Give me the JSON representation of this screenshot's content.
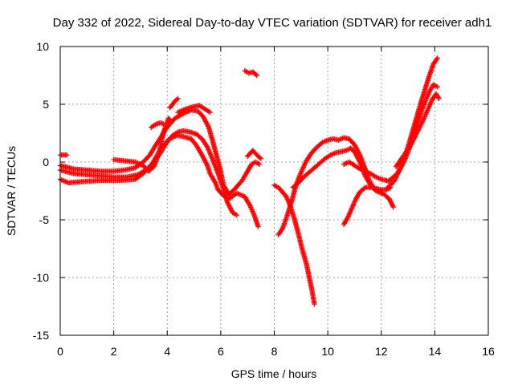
{
  "chart_data": {
    "type": "scatter",
    "title": "Day 332 of 2022, Sidereal Day-to-day VTEC variation (SDTVAR) for receiver adh1",
    "xlabel": "GPS time / hours",
    "ylabel": "SDTVAR / TECUs",
    "xlim": [
      0,
      16
    ],
    "ylim": [
      -15,
      10
    ],
    "xticks": [
      "0",
      "2",
      "4",
      "6",
      "8",
      "10",
      "12",
      "14",
      "16"
    ],
    "yticks": [
      "10",
      "5",
      "0",
      "-5",
      "-10",
      "-15"
    ],
    "xtick_values": [
      0,
      2,
      4,
      6,
      8,
      10,
      12,
      14,
      16
    ],
    "ytick_values": [
      10,
      5,
      0,
      -5,
      -10,
      -15
    ],
    "grid": true,
    "marker": "plus",
    "color": "#ff0000",
    "series": [
      {
        "x": [
          0.0,
          0.25
        ],
        "y": [
          0.6,
          0.6
        ]
      },
      {
        "x": [
          0.0,
          0.3,
          0.8,
          1.5,
          2.2,
          2.8,
          3.1,
          3.4,
          3.6,
          3.8,
          3.95,
          4.1,
          4.25,
          4.4,
          4.6,
          4.9,
          5.1,
          5.3,
          5.5,
          5.6,
          5.8,
          5.9,
          6.1,
          6.3,
          6.6,
          6.9,
          7.1,
          7.25,
          7.4
        ],
        "y": [
          -1.5,
          -1.8,
          -1.7,
          -1.6,
          -1.6,
          -1.5,
          -1.0,
          -0.3,
          0.5,
          1.3,
          1.7,
          2.0,
          2.2,
          2.3,
          2.2,
          2.0,
          1.4,
          0.6,
          -0.3,
          -1.0,
          -1.8,
          -2.4,
          -2.9,
          -3.2,
          -2.7,
          -3.0,
          -3.8,
          -4.6,
          -5.6
        ]
      },
      {
        "x": [
          0.0,
          0.5,
          1.0,
          1.5,
          2.0,
          2.5,
          2.9,
          3.2,
          3.5,
          3.75,
          3.9,
          4.05,
          4.2,
          4.4,
          4.6,
          4.85,
          5.1,
          5.3,
          5.5,
          5.7,
          5.9,
          6.1,
          6.25,
          6.45,
          6.6
        ],
        "y": [
          -0.7,
          -1.0,
          -1.1,
          -1.2,
          -1.3,
          -1.3,
          -1.1,
          -0.7,
          0.0,
          0.8,
          1.4,
          1.9,
          2.3,
          2.6,
          2.7,
          2.6,
          2.4,
          2.0,
          1.3,
          0.2,
          -1.0,
          -2.3,
          -3.5,
          -4.4,
          -4.6
        ]
      },
      {
        "x": [
          0.0,
          0.5,
          1.0,
          1.5,
          2.0,
          2.4,
          2.8,
          3.1,
          3.35,
          3.55,
          3.75,
          3.9,
          4.1,
          4.3,
          4.6,
          4.9,
          5.15,
          5.35,
          5.55,
          5.7,
          5.85,
          6.0,
          6.1,
          6.3,
          6.5,
          6.8,
          7.0,
          7.15,
          7.3,
          7.45
        ],
        "y": [
          -0.3,
          -0.6,
          -0.7,
          -0.8,
          -0.8,
          -0.7,
          -0.5,
          0.0,
          0.6,
          1.4,
          2.1,
          2.7,
          3.3,
          3.8,
          4.2,
          4.5,
          4.4,
          3.9,
          3.0,
          1.8,
          0.5,
          -0.8,
          -2.0,
          -2.8,
          -2.4,
          -1.6,
          -0.8,
          -0.2,
          0.0,
          -0.2
        ]
      },
      {
        "x": [
          2.0,
          2.4,
          2.8,
          3.1,
          3.3,
          3.5,
          3.7,
          3.8,
          3.95,
          4.05,
          4.1
        ],
        "y": [
          0.2,
          0.1,
          0.0,
          -0.3,
          -0.8,
          -0.4,
          0.8,
          2.0,
          3.2,
          3.8,
          3.6
        ]
      },
      {
        "x": [
          3.4,
          3.6,
          3.75,
          3.85
        ],
        "y": [
          3.0,
          3.3,
          3.4,
          3.3
        ]
      },
      {
        "x": [
          4.1,
          4.2,
          4.3,
          4.4
        ],
        "y": [
          4.7,
          5.0,
          5.3,
          5.5
        ]
      },
      {
        "x": [
          4.4,
          4.7,
          5.0,
          5.2,
          5.4,
          5.6
        ],
        "y": [
          4.3,
          4.6,
          4.8,
          4.9,
          4.6,
          4.3
        ]
      },
      {
        "x": [
          6.9,
          7.05,
          7.2,
          7.35
        ],
        "y": [
          7.9,
          7.7,
          7.8,
          7.5
        ]
      },
      {
        "x": [
          7.0,
          7.2,
          7.35,
          7.5
        ],
        "y": [
          0.5,
          1.0,
          0.6,
          0.3
        ]
      },
      {
        "x": [
          8.0,
          8.2,
          8.45,
          8.6,
          8.75,
          8.9,
          9.05,
          9.2,
          9.3,
          9.4,
          9.5
        ],
        "y": [
          -2.0,
          -2.3,
          -3.0,
          -3.8,
          -4.9,
          -6.2,
          -7.6,
          -8.8,
          -9.9,
          -11.0,
          -12.3
        ]
      },
      {
        "x": [
          8.15,
          8.3,
          8.4,
          8.5,
          8.65,
          8.8,
          9.0,
          9.2,
          9.4,
          9.6,
          9.8,
          10.0,
          10.2,
          10.4,
          10.6,
          10.8,
          11.0,
          11.2,
          11.4,
          11.55,
          11.7,
          11.9,
          12.1,
          12.3,
          12.45
        ],
        "y": [
          -6.3,
          -5.8,
          -5.2,
          -4.5,
          -3.4,
          -2.1,
          -0.9,
          0.1,
          0.8,
          1.3,
          1.7,
          1.9,
          2.0,
          1.9,
          2.1,
          2.0,
          1.5,
          0.6,
          -0.6,
          -1.6,
          -2.2,
          -2.5,
          -2.8,
          -3.2,
          -3.9
        ]
      },
      {
        "x": [
          8.7,
          8.9,
          9.1,
          9.3,
          9.5,
          9.7,
          9.9,
          10.1,
          10.3,
          10.5,
          10.7,
          10.85,
          11.0,
          11.2,
          11.4,
          11.6,
          11.8,
          12.0
        ],
        "y": [
          -2.2,
          -1.8,
          -1.3,
          -0.9,
          -0.5,
          -0.1,
          0.3,
          0.6,
          0.8,
          0.9,
          1.0,
          1.2,
          0.9,
          0.0,
          -1.2,
          -2.0,
          -2.5,
          -2.7
        ]
      },
      {
        "x": [
          10.6,
          10.8,
          11.0,
          11.2,
          11.4,
          11.6,
          11.8,
          12.0,
          12.2,
          12.3
        ],
        "y": [
          -0.2,
          0.0,
          -0.3,
          -0.6,
          -0.8,
          -1.0,
          -1.3,
          -1.5,
          -1.6,
          -1.7
        ]
      },
      {
        "x": [
          10.6,
          10.75,
          10.9,
          11.05,
          11.2,
          11.4,
          11.6,
          11.8,
          12.0,
          12.2,
          12.35
        ],
        "y": [
          -5.4,
          -4.8,
          -4.0,
          -3.2,
          -2.6,
          -2.2,
          -2.2,
          -2.3,
          -2.4,
          -2.4,
          -2.2
        ]
      },
      {
        "x": [
          12.2,
          12.35,
          12.5,
          12.6,
          12.75,
          12.9,
          13.05,
          13.2,
          13.35,
          13.5,
          13.65,
          13.8,
          13.95,
          14.1
        ],
        "y": [
          -2.3,
          -2.0,
          -1.6,
          -1.1,
          -0.3,
          0.6,
          1.7,
          2.9,
          4.1,
          5.3,
          6.4,
          7.5,
          8.5,
          9.0
        ]
      },
      {
        "x": [
          12.3,
          12.45,
          12.6,
          12.75,
          12.9,
          13.05,
          13.2,
          13.35,
          13.5,
          13.65,
          13.8,
          13.95,
          14.1
        ],
        "y": [
          -1.6,
          -1.3,
          -1.0,
          -0.4,
          0.3,
          1.2,
          2.3,
          3.3,
          4.4,
          5.3,
          6.1,
          6.7,
          6.5
        ]
      },
      {
        "x": [
          12.55,
          12.7,
          12.85,
          13.0,
          13.15,
          13.3,
          13.45,
          13.6,
          13.75,
          13.9,
          14.05,
          14.15
        ],
        "y": [
          -0.4,
          0.1,
          0.6,
          1.1,
          1.7,
          2.4,
          3.1,
          3.8,
          4.6,
          5.4,
          5.9,
          5.5
        ]
      }
    ]
  }
}
